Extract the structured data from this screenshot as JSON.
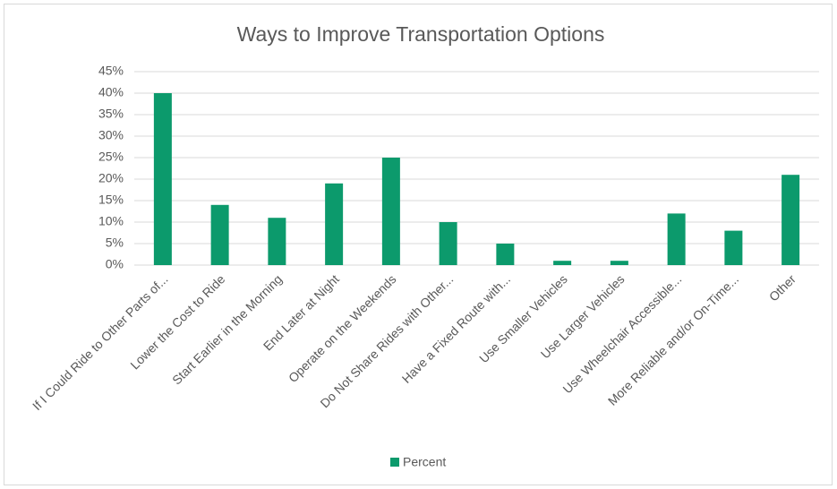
{
  "chart_data": {
    "type": "bar",
    "title": "Ways to Improve Transportation Options",
    "categories": [
      "If I Could Ride to Other Parts of...",
      "Lower the Cost to Ride",
      "Start Earlier in the Morning",
      "End Later at Night",
      "Operate on the Weekends",
      "Do Not Share Rides with Other...",
      "Have a Fixed Route with...",
      "Use Smaller Vehicles",
      "Use Larger Vehicles",
      "Use Wheelchair Accessible...",
      "More Reliable and/or On-Time...",
      "Other"
    ],
    "series": [
      {
        "name": "Percent",
        "color": "#0c9a6c",
        "values": [
          40,
          14,
          11,
          19,
          25,
          10,
          5,
          1,
          1,
          12,
          8,
          21
        ]
      }
    ],
    "ylim": [
      0,
      45
    ],
    "yticks": [
      {
        "value": 0,
        "label": "0%"
      },
      {
        "value": 5,
        "label": "5%"
      },
      {
        "value": 10,
        "label": "10%"
      },
      {
        "value": 15,
        "label": "15%"
      },
      {
        "value": 20,
        "label": "20%"
      },
      {
        "value": 25,
        "label": "25%"
      },
      {
        "value": 30,
        "label": "30%"
      },
      {
        "value": 35,
        "label": "35%"
      },
      {
        "value": 40,
        "label": "40%"
      },
      {
        "value": 45,
        "label": "45%"
      }
    ],
    "grid": true,
    "legend": "bottom"
  }
}
